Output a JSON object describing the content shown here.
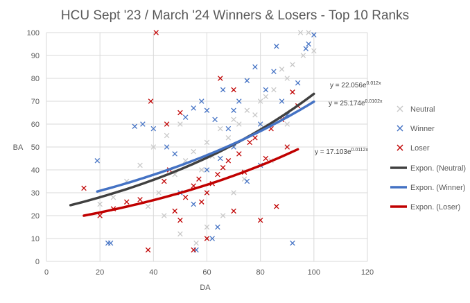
{
  "chart_data": {
    "type": "scatter",
    "title": "HCU Sept '23 / March '24 Winners & Losers - Top 10 Ranks",
    "xlabel": "DA",
    "ylabel": "BA",
    "xlim": [
      0,
      120
    ],
    "ylim": [
      0,
      100
    ],
    "x_ticks": [
      "0",
      "20",
      "40",
      "60",
      "80",
      "100",
      "120"
    ],
    "y_ticks": [
      "0",
      "10",
      "20",
      "30",
      "40",
      "50",
      "60",
      "70",
      "80",
      "90",
      "100"
    ],
    "grid": "vertical and horizontal major gridlines",
    "legend_position": "right",
    "series": [
      {
        "name": "Neutral",
        "marker": "x",
        "color": "#c8c8c8",
        "points": [
          [
            30,
            35
          ],
          [
            35,
            42
          ],
          [
            40,
            50
          ],
          [
            45,
            55
          ],
          [
            50,
            60
          ],
          [
            55,
            48
          ],
          [
            60,
            52
          ],
          [
            65,
            58
          ],
          [
            70,
            62
          ],
          [
            75,
            66
          ],
          [
            80,
            70
          ],
          [
            85,
            75
          ],
          [
            90,
            80
          ],
          [
            95,
            100
          ],
          [
            98,
            100
          ],
          [
            100,
            92
          ],
          [
            42,
            30
          ],
          [
            48,
            38
          ],
          [
            52,
            44
          ],
          [
            58,
            40
          ],
          [
            62,
            46
          ],
          [
            68,
            54
          ],
          [
            72,
            60
          ],
          [
            78,
            64
          ],
          [
            82,
            72
          ],
          [
            88,
            84
          ],
          [
            92,
            86
          ],
          [
            25,
            28
          ],
          [
            20,
            25
          ],
          [
            38,
            24
          ],
          [
            44,
            20
          ],
          [
            50,
            12
          ],
          [
            56,
            8
          ],
          [
            60,
            15
          ],
          [
            66,
            20
          ],
          [
            70,
            30
          ],
          [
            74,
            36
          ],
          [
            84,
            44
          ],
          [
            90,
            60
          ],
          [
            96,
            90
          ]
        ]
      },
      {
        "name": "Winner",
        "marker": "x",
        "color": "#4472c4",
        "points": [
          [
            19,
            44
          ],
          [
            23,
            8
          ],
          [
            24,
            8
          ],
          [
            33,
            59
          ],
          [
            36,
            60
          ],
          [
            40,
            58
          ],
          [
            45,
            50
          ],
          [
            48,
            47
          ],
          [
            52,
            63
          ],
          [
            55,
            67
          ],
          [
            58,
            70
          ],
          [
            60,
            66
          ],
          [
            63,
            62
          ],
          [
            66,
            75
          ],
          [
            68,
            58
          ],
          [
            70,
            66
          ],
          [
            72,
            70
          ],
          [
            75,
            79
          ],
          [
            78,
            85
          ],
          [
            80,
            60
          ],
          [
            82,
            75
          ],
          [
            85,
            83
          ],
          [
            86,
            94
          ],
          [
            88,
            70
          ],
          [
            90,
            64
          ],
          [
            92,
            8
          ],
          [
            94,
            78
          ],
          [
            97,
            93
          ],
          [
            98,
            95
          ],
          [
            100,
            99
          ],
          [
            50,
            30
          ],
          [
            55,
            25
          ],
          [
            60,
            40
          ],
          [
            65,
            45
          ],
          [
            70,
            50
          ],
          [
            75,
            35
          ],
          [
            80,
            42
          ],
          [
            64,
            15
          ],
          [
            56,
            5
          ],
          [
            62,
            10
          ]
        ]
      },
      {
        "name": "Loser",
        "marker": "x",
        "color": "#c00000",
        "points": [
          [
            14,
            32
          ],
          [
            20,
            20
          ],
          [
            25,
            23
          ],
          [
            30,
            26
          ],
          [
            35,
            27
          ],
          [
            38,
            5
          ],
          [
            39,
            70
          ],
          [
            41,
            100
          ],
          [
            44,
            35
          ],
          [
            46,
            40
          ],
          [
            48,
            22
          ],
          [
            50,
            18
          ],
          [
            52,
            28
          ],
          [
            55,
            33
          ],
          [
            57,
            36
          ],
          [
            58,
            26
          ],
          [
            60,
            30
          ],
          [
            62,
            34
          ],
          [
            64,
            38
          ],
          [
            66,
            41
          ],
          [
            68,
            44
          ],
          [
            70,
            22
          ],
          [
            72,
            47
          ],
          [
            74,
            39
          ],
          [
            76,
            52
          ],
          [
            78,
            54
          ],
          [
            80,
            18
          ],
          [
            82,
            45
          ],
          [
            84,
            58
          ],
          [
            86,
            24
          ],
          [
            88,
            62
          ],
          [
            90,
            50
          ],
          [
            92,
            74
          ],
          [
            94,
            68
          ],
          [
            55,
            5
          ],
          [
            60,
            10
          ],
          [
            45,
            60
          ],
          [
            50,
            65
          ],
          [
            65,
            80
          ],
          [
            70,
            75
          ]
        ]
      }
    ],
    "trendlines": [
      {
        "name": "Expon. (Neutral)",
        "color": "#404040",
        "a": 22.056,
        "b": 0.012,
        "x_start": 9,
        "x_end": 100,
        "equation": "y = 22.056e",
        "exponent": "0.012x"
      },
      {
        "name": "Expon. (Winner)",
        "color": "#4472c4",
        "a": 25.174,
        "b": 0.0102,
        "x_start": 19,
        "x_end": 100,
        "equation": "y = 25.174e",
        "exponent": "0.0102x"
      },
      {
        "name": "Expon. (Loser)",
        "color": "#c00000",
        "a": 17.103,
        "b": 0.0112,
        "x_start": 14,
        "x_end": 94,
        "equation": "y = 17.103e",
        "exponent": "0.0112x"
      }
    ]
  }
}
